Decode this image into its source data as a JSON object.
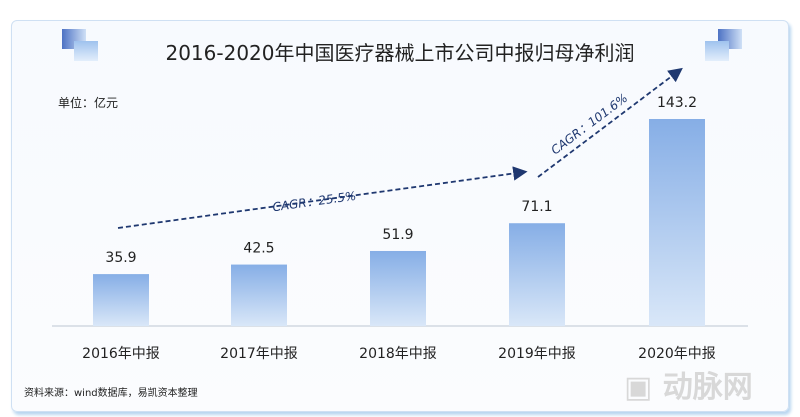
{
  "chart_data": {
    "type": "bar",
    "title": "2016-2020年中国医疗器械上市公司中报归母净利润",
    "unit_label": "单位：亿元",
    "categories": [
      "2016年中报",
      "2017年中报",
      "2018年中报",
      "2019年中报",
      "2020年中报"
    ],
    "values": [
      35.9,
      42.5,
      51.9,
      71.1,
      143.2
    ],
    "value_labels": [
      "35.9",
      "42.5",
      "51.9",
      "71.1",
      "143.2"
    ],
    "annotations": [
      {
        "text": "CAGR：25.5%",
        "from": "2016年中报",
        "to": "2019年中报"
      },
      {
        "text": "CAGR：101.6%",
        "from": "2019年中报",
        "to": "2020年中报"
      }
    ],
    "bar_color": "#8db4e8",
    "arrow_color": "#1f3870",
    "source": "资料来源：wind数据库，易凯资本整理",
    "watermark": "动脉网"
  }
}
